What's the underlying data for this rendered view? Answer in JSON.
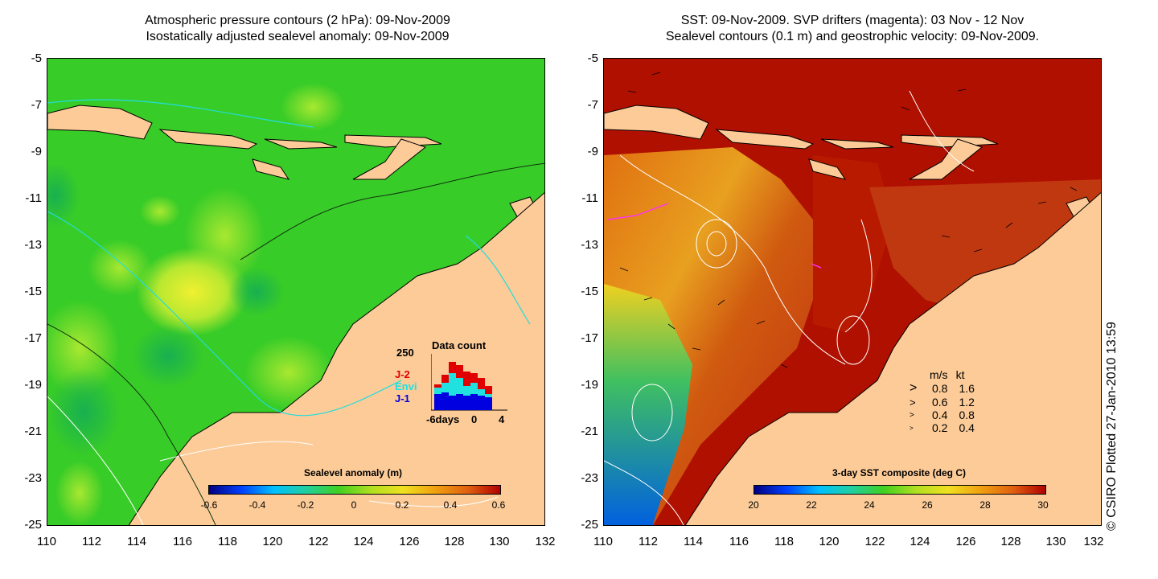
{
  "left_panel": {
    "title_line1": "Atmospheric pressure contours (2 hPa): 09-Nov-2009",
    "title_line2": "Isostatically adjusted sealevel anomaly: 09-Nov-2009",
    "colorbar_title": "Sealevel anomaly (m)",
    "colorbar_ticks": [
      "-0.6",
      "-0.4",
      "-0.2",
      "0",
      "0.2",
      "0.4",
      "0.6"
    ],
    "inset": {
      "title": "Data count",
      "ymax_label": "250",
      "legend": [
        {
          "label": "J-2",
          "color": "#e00000"
        },
        {
          "label": "Envi",
          "color": "#20e0e0"
        },
        {
          "label": "J-1",
          "color": "#0000e0"
        }
      ],
      "x_labels": [
        "-6days",
        "0",
        "4"
      ]
    }
  },
  "right_panel": {
    "title_line1": "SST: 09-Nov-2009. SVP drifters (magenta): 03 Nov - 12 Nov",
    "title_line2": "Sealevel contours (0.1 m) and geostrophic velocity: 09-Nov-2009.",
    "colorbar_title": "3-day SST composite (deg C)",
    "colorbar_ticks": [
      "20",
      "22",
      "24",
      "26",
      "28",
      "30"
    ],
    "velocity_legend": {
      "header": [
        "m/s",
        "kt"
      ],
      "rows": [
        [
          "0.8",
          "1.6"
        ],
        [
          "0.6",
          "1.2"
        ],
        [
          "0.4",
          "0.8"
        ],
        [
          "0.2",
          "0.4"
        ]
      ]
    }
  },
  "axes": {
    "y_ticks": [
      "-5",
      "-7",
      "-9",
      "-11",
      "-13",
      "-15",
      "-17",
      "-19",
      "-21",
      "-23",
      "-25"
    ],
    "x_ticks": [
      "110",
      "112",
      "114",
      "116",
      "118",
      "120",
      "122",
      "124",
      "126",
      "128",
      "130",
      "132"
    ]
  },
  "credit": "© CSIRO Plotted 27-Jan-2010 13:59",
  "colors": {
    "land": "#fccb98",
    "sea_green": "#40d020",
    "sst_hot": "#b01000",
    "sst_warm": "#d85a10"
  }
}
